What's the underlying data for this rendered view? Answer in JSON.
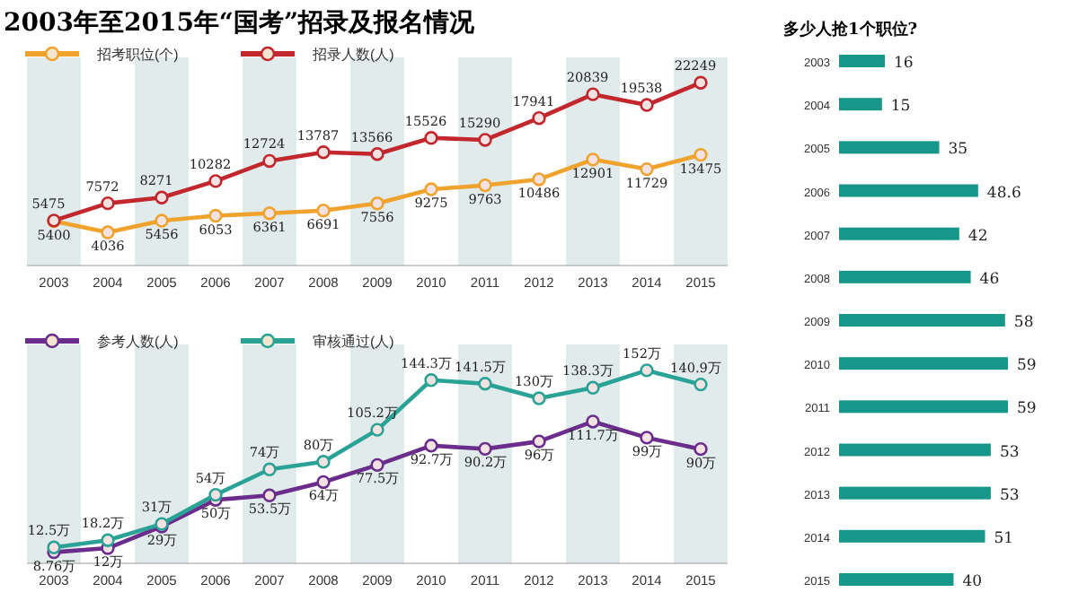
{
  "chart_data": [
    {
      "type": "line",
      "title": "2003年至2015年“国考”招录及报名情况",
      "categories": [
        "2003",
        "2004",
        "2005",
        "2006",
        "2007",
        "2008",
        "2009",
        "2010",
        "2011",
        "2012",
        "2013",
        "2014",
        "2015"
      ],
      "series": [
        {
          "name": "招考职位(个)",
          "color": "#f0a32c",
          "values": [
            5400,
            4036,
            5456,
            6053,
            6361,
            6691,
            7556,
            9275,
            9763,
            10486,
            12901,
            11729,
            13475
          ]
        },
        {
          "name": "招录人数(人)",
          "color": "#c1272d",
          "values": [
            5475,
            7572,
            8271,
            10282,
            12724,
            13787,
            13566,
            15526,
            15290,
            17941,
            20839,
            19538,
            22249
          ]
        }
      ],
      "data_labels": true,
      "marker": "circle",
      "legend": "top left",
      "grid": false
    },
    {
      "type": "line",
      "categories": [
        "2003",
        "2004",
        "2005",
        "2006",
        "2007",
        "2008",
        "2009",
        "2010",
        "2011",
        "2012",
        "2013",
        "2014",
        "2015"
      ],
      "series": [
        {
          "name": "参考人数(人)",
          "color": "#6b2d8c",
          "values": [
            8.76,
            12,
            29,
            50,
            53.5,
            64,
            77.5,
            92.7,
            90.2,
            96,
            111.7,
            99,
            90
          ],
          "value_labels": [
            "8.76万",
            "12万",
            "29万",
            "50万",
            "53.5万",
            "64万",
            "77.5万",
            "92.7万",
            "90.2万",
            "96万",
            "111.7万",
            "99万",
            "90万"
          ]
        },
        {
          "name": "审核通过(人)",
          "color": "#2aa396",
          "values": [
            12.5,
            18.2,
            31,
            54,
            74,
            80,
            105.2,
            144.3,
            141.5,
            130,
            138.3,
            152,
            140.9
          ],
          "value_labels": [
            "12.5万",
            "18.2万",
            "31万",
            "54万",
            "74万",
            "80万",
            "105.2万",
            "144.3万",
            "141.5万",
            "130万",
            "138.3万",
            "152万",
            "140.9万"
          ]
        }
      ],
      "marker": "circle",
      "legend": "top left",
      "grid": false
    },
    {
      "type": "bar",
      "orientation": "horizontal",
      "title": "多少人抢1个职位?",
      "categories": [
        "2003",
        "2004",
        "2005",
        "2006",
        "2007",
        "2008",
        "2009",
        "2010",
        "2011",
        "2012",
        "2013",
        "2014",
        "2015"
      ],
      "values": [
        16,
        15,
        35,
        48.6,
        42,
        46,
        58,
        59,
        59,
        53,
        53,
        51,
        40
      ],
      "color": "#17978a",
      "data_labels": true
    }
  ]
}
